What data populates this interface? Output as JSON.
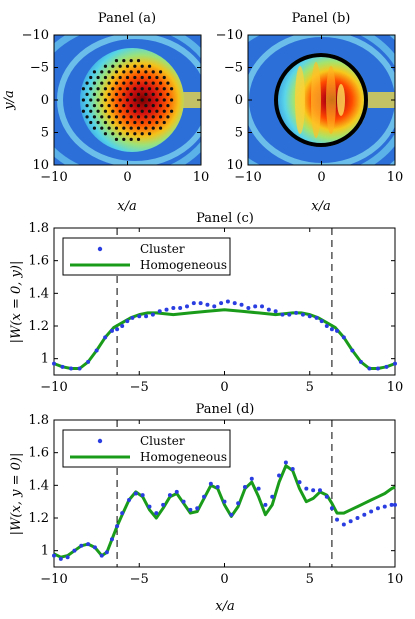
{
  "figure": {
    "panels": [
      "Panel (a)",
      "Panel (b)",
      "Panel (c)",
      "Panel (d)"
    ]
  },
  "chart_data": [
    {
      "type": "heatmap",
      "title": "Panel (a)",
      "xlabel": "x/a",
      "ylabel": "y/a",
      "xlim": [
        -10,
        10
      ],
      "ylim": [
        -10,
        10
      ],
      "xticks": [
        "−10",
        "0",
        "10"
      ],
      "yticks": [
        "−10",
        "−5",
        "0",
        "5",
        "10"
      ],
      "y_axis_inverted": true,
      "colormap": "jet",
      "overlay": "cluster of circular scatterers (black dots) in hexagonal lattice, radius ≈ 6.3a",
      "cluster_radius": 6.3,
      "lattice_constant": 1
    },
    {
      "type": "heatmap",
      "title": "Panel (b)",
      "xlabel": "x/a",
      "xlim": [
        -10,
        10
      ],
      "ylim": [
        -10,
        10
      ],
      "xticks": [
        "−10",
        "0",
        "10"
      ],
      "yticks": [
        "−10",
        "−5",
        "0",
        "5",
        "10"
      ],
      "y_axis_inverted": true,
      "colormap": "jet",
      "overlay": "homogeneous cylinder boundary (black circle), radius ≈ 6.3a",
      "cluster_radius": 6.3
    },
    {
      "type": "line",
      "title": "Panel (c)",
      "xlabel": "",
      "ylabel": "|W(x = 0, y)|",
      "xlim": [
        -10,
        10
      ],
      "ylim": [
        0.9,
        1.8
      ],
      "xticks": [
        "−10",
        "−5",
        "0",
        "5",
        "10"
      ],
      "yticks": [
        "1",
        "1.2",
        "1.4",
        "1.6",
        "1.8"
      ],
      "vlines": [
        -6.3,
        6.3
      ],
      "legend": [
        "Cluster",
        "Homogeneous"
      ],
      "legend_position": "top-left",
      "series": [
        {
          "name": "Homogeneous",
          "style": "line",
          "color": "#1a9c1a",
          "x": [
            -10,
            -9.5,
            -9,
            -8.5,
            -8,
            -7.5,
            -7,
            -6.5,
            -6,
            -5.5,
            -5,
            -4.5,
            -4,
            -3,
            -2,
            -1,
            0,
            1,
            2,
            3,
            4,
            4.5,
            5,
            5.5,
            6,
            6.5,
            7,
            7.5,
            8,
            8.5,
            9,
            9.5,
            10
          ],
          "y": [
            0.97,
            0.95,
            0.94,
            0.94,
            0.98,
            1.05,
            1.13,
            1.19,
            1.22,
            1.25,
            1.27,
            1.28,
            1.28,
            1.27,
            1.28,
            1.29,
            1.3,
            1.29,
            1.28,
            1.27,
            1.28,
            1.28,
            1.27,
            1.25,
            1.22,
            1.19,
            1.13,
            1.05,
            0.98,
            0.94,
            0.94,
            0.95,
            0.97
          ]
        },
        {
          "name": "Cluster",
          "style": "markers",
          "color": "#2a3de0",
          "x": [
            -10,
            -9.5,
            -9,
            -8.5,
            -8,
            -7.5,
            -7,
            -6.6,
            -6.3,
            -6.0,
            -5.7,
            -5.4,
            -5.0,
            -4.6,
            -4.2,
            -3.8,
            -3.4,
            -3.0,
            -2.6,
            -2.2,
            -1.8,
            -1.4,
            -1.0,
            -0.6,
            -0.2,
            0.2,
            0.6,
            1.0,
            1.4,
            1.8,
            2.2,
            2.6,
            3.0,
            3.4,
            3.8,
            4.2,
            4.6,
            5.0,
            5.4,
            5.7,
            6.0,
            6.3,
            6.6,
            7,
            7.5,
            8,
            8.5,
            9,
            9.5,
            10
          ],
          "y": [
            0.97,
            0.95,
            0.94,
            0.94,
            0.98,
            1.05,
            1.13,
            1.17,
            1.18,
            1.2,
            1.23,
            1.25,
            1.26,
            1.26,
            1.27,
            1.29,
            1.3,
            1.31,
            1.31,
            1.32,
            1.34,
            1.34,
            1.33,
            1.32,
            1.34,
            1.35,
            1.34,
            1.33,
            1.31,
            1.32,
            1.32,
            1.3,
            1.29,
            1.27,
            1.27,
            1.28,
            1.27,
            1.26,
            1.25,
            1.23,
            1.2,
            1.18,
            1.17,
            1.13,
            1.05,
            0.98,
            0.94,
            0.94,
            0.95,
            0.97
          ]
        }
      ]
    },
    {
      "type": "line",
      "title": "Panel (d)",
      "xlabel": "x/a",
      "ylabel": "|W(x, y = 0)|",
      "xlim": [
        -10,
        10
      ],
      "ylim": [
        0.9,
        1.8
      ],
      "xticks": [
        "−10",
        "−5",
        "0",
        "5",
        "10"
      ],
      "yticks": [
        "1",
        "1.2",
        "1.4",
        "1.6",
        "1.8"
      ],
      "vlines": [
        -6.3,
        6.3
      ],
      "legend": [
        "Cluster",
        "Homogeneous"
      ],
      "legend_position": "top-left",
      "series": [
        {
          "name": "Homogeneous",
          "style": "line",
          "color": "#1a9c1a",
          "x": [
            -10,
            -9.6,
            -9.2,
            -8.8,
            -8.4,
            -8.0,
            -7.6,
            -7.2,
            -6.9,
            -6.6,
            -6.3,
            -6.0,
            -5.6,
            -5.2,
            -4.8,
            -4.4,
            -4.0,
            -3.6,
            -3.2,
            -2.8,
            -2.4,
            -2.0,
            -1.6,
            -1.2,
            -0.8,
            -0.4,
            0.0,
            0.4,
            0.8,
            1.2,
            1.6,
            2.0,
            2.4,
            2.8,
            3.2,
            3.6,
            4.0,
            4.4,
            4.8,
            5.2,
            5.6,
            6.0,
            6.3,
            6.6,
            7.0,
            7.4,
            7.8,
            8.2,
            8.6,
            9.0,
            9.4,
            9.8,
            10.0
          ],
          "y": [
            0.98,
            0.96,
            0.97,
            1.0,
            1.03,
            1.04,
            1.02,
            0.97,
            0.99,
            1.07,
            1.15,
            1.22,
            1.31,
            1.36,
            1.33,
            1.25,
            1.2,
            1.26,
            1.33,
            1.35,
            1.29,
            1.23,
            1.24,
            1.32,
            1.4,
            1.38,
            1.28,
            1.21,
            1.27,
            1.38,
            1.42,
            1.33,
            1.22,
            1.28,
            1.42,
            1.52,
            1.49,
            1.38,
            1.3,
            1.32,
            1.36,
            1.34,
            1.29,
            1.23,
            1.23,
            1.25,
            1.27,
            1.29,
            1.31,
            1.33,
            1.35,
            1.38,
            1.39
          ]
        },
        {
          "name": "Cluster",
          "style": "markers",
          "color": "#2a3de0",
          "x": [
            -10,
            -9.6,
            -9.2,
            -8.8,
            -8.4,
            -8.0,
            -7.6,
            -7.2,
            -6.9,
            -6.6,
            -6.3,
            -6.0,
            -5.6,
            -5.2,
            -4.8,
            -4.4,
            -4.0,
            -3.6,
            -3.2,
            -2.8,
            -2.4,
            -2.0,
            -1.6,
            -1.2,
            -0.8,
            -0.4,
            0.0,
            0.4,
            0.8,
            1.2,
            1.6,
            2.0,
            2.4,
            2.8,
            3.2,
            3.6,
            4.0,
            4.4,
            4.8,
            5.2,
            5.6,
            6.0,
            6.3,
            6.6,
            7.0,
            7.4,
            7.8,
            8.2,
            8.6,
            9.0,
            9.4,
            9.8,
            10.0
          ],
          "y": [
            0.97,
            0.95,
            0.96,
            1.0,
            1.03,
            1.04,
            1.02,
            0.97,
            0.99,
            1.07,
            1.15,
            1.23,
            1.31,
            1.35,
            1.34,
            1.27,
            1.23,
            1.28,
            1.34,
            1.36,
            1.3,
            1.25,
            1.26,
            1.33,
            1.41,
            1.39,
            1.3,
            1.22,
            1.29,
            1.39,
            1.44,
            1.38,
            1.28,
            1.33,
            1.46,
            1.54,
            1.5,
            1.42,
            1.38,
            1.37,
            1.37,
            1.33,
            1.26,
            1.19,
            1.16,
            1.18,
            1.2,
            1.22,
            1.24,
            1.26,
            1.27,
            1.28,
            1.28
          ]
        }
      ]
    }
  ]
}
